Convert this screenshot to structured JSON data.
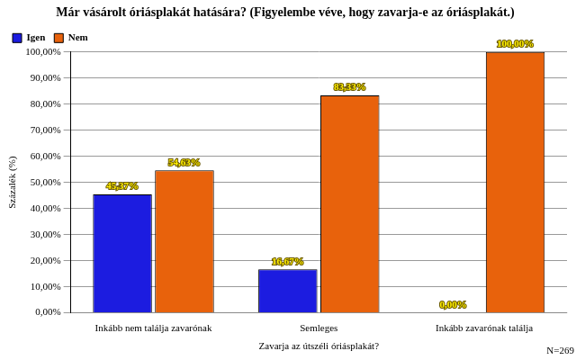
{
  "chart_data": {
    "type": "bar",
    "title": "Már vásárolt óriásplakát hatására? (Figyelembe véve, hogy zavarja-e az óriásplakát.)",
    "x_label": "Zavarja az útszéli óriásplakát?",
    "y_label": "Százalék (%)",
    "annotation": "N=269",
    "categories": [
      "Inkább nem találja zavarónak",
      "Semleges",
      "Inkább zavarónak találja"
    ],
    "series": [
      {
        "name": "Igen",
        "color": "#1c1ce0",
        "values": [
          45.37,
          16.67,
          0.0
        ],
        "value_labels": [
          "45,37%",
          "16,67%",
          "0,00%"
        ]
      },
      {
        "name": "Nem",
        "color": "#e8620c",
        "values": [
          54.63,
          83.33,
          100.0
        ],
        "value_labels": [
          "54,63%",
          "83,33%",
          "100,00%"
        ]
      }
    ],
    "ylim": [
      0,
      100
    ],
    "yticks": [
      {
        "value": 0,
        "label": "0,00%"
      },
      {
        "value": 10,
        "label": "10,00%"
      },
      {
        "value": 20,
        "label": "20,00%"
      },
      {
        "value": 30,
        "label": "30,00%"
      },
      {
        "value": 40,
        "label": "40,00%"
      },
      {
        "value": 50,
        "label": "50,00%"
      },
      {
        "value": 60,
        "label": "60,00%"
      },
      {
        "value": 70,
        "label": "70,00%"
      },
      {
        "value": 80,
        "label": "80,00%"
      },
      {
        "value": 90,
        "label": "90,00%"
      },
      {
        "value": 100,
        "label": "100,00%"
      }
    ],
    "grid": true,
    "legend": "top-left",
    "data_labels": true
  }
}
